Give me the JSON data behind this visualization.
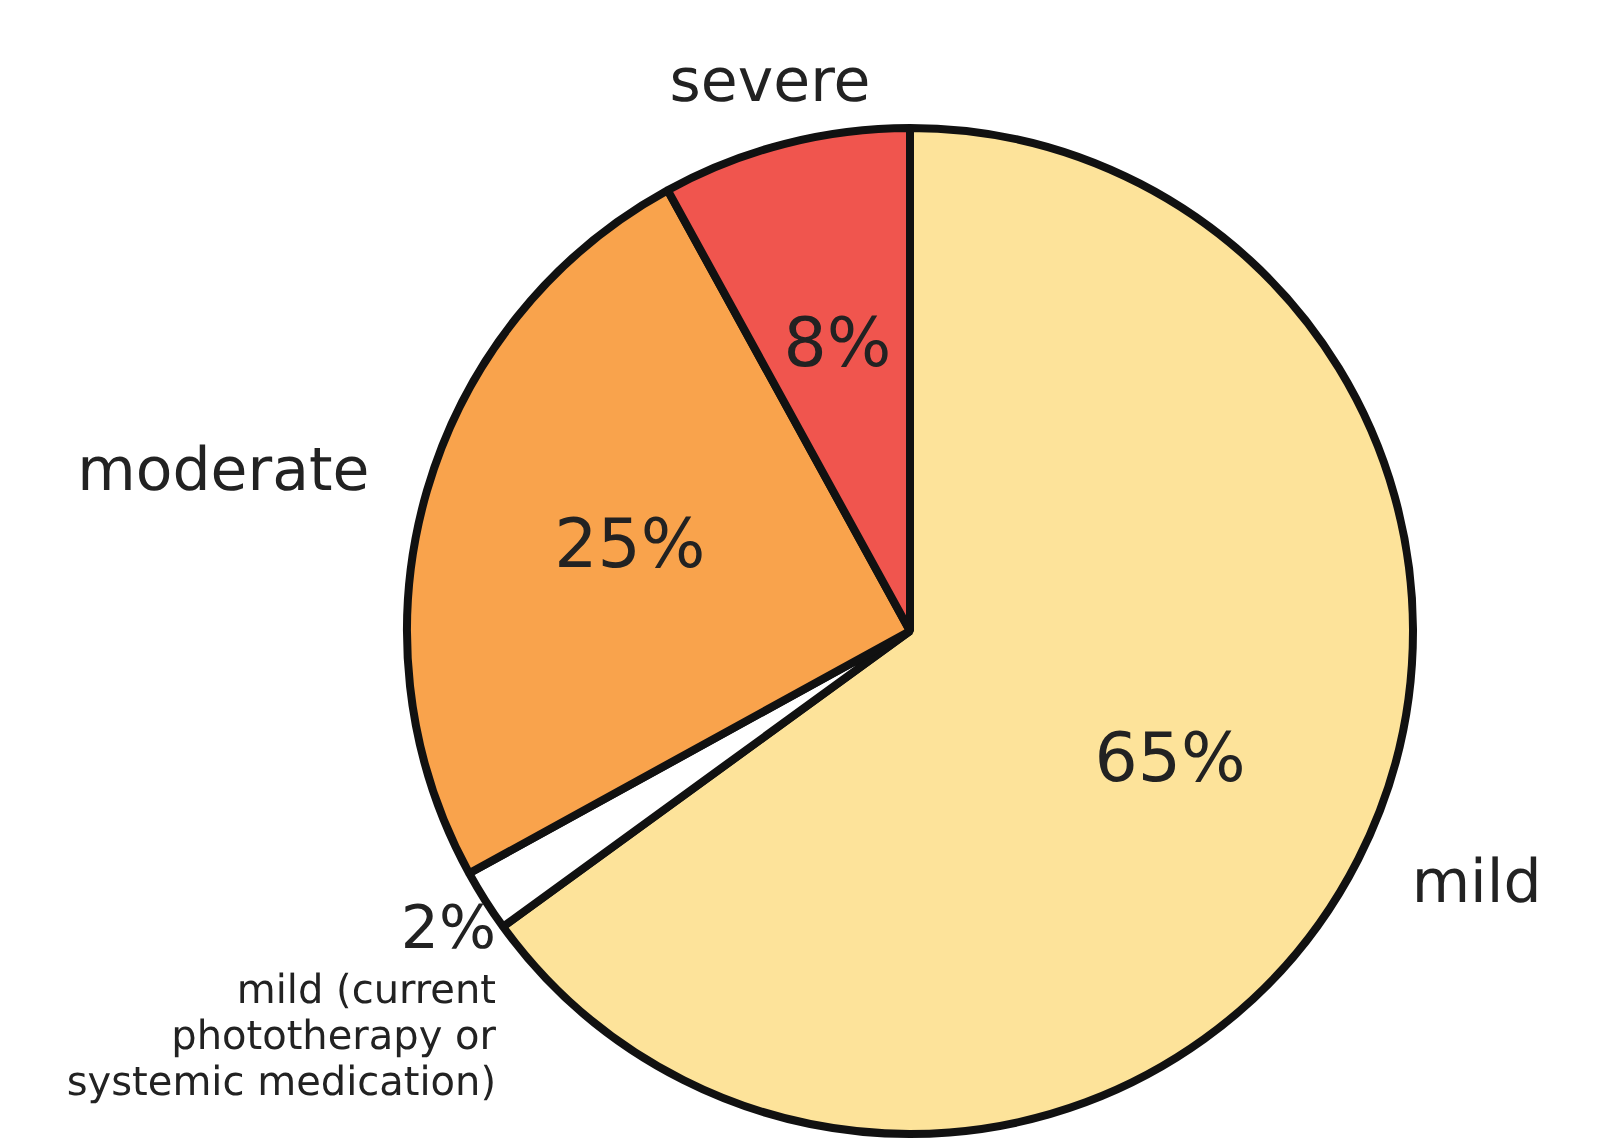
{
  "chart_data": {
    "type": "pie",
    "categories": [
      "mild",
      "mild (current phototherapy or systemic medication)",
      "moderate",
      "severe"
    ],
    "values": [
      65,
      2,
      25,
      8
    ],
    "colors": [
      "#fde39a",
      "#ffffff",
      "#f9a34c",
      "#f0554e"
    ],
    "value_labels": [
      "65%",
      "2%",
      "25%",
      "8%"
    ],
    "legend": false
  }
}
